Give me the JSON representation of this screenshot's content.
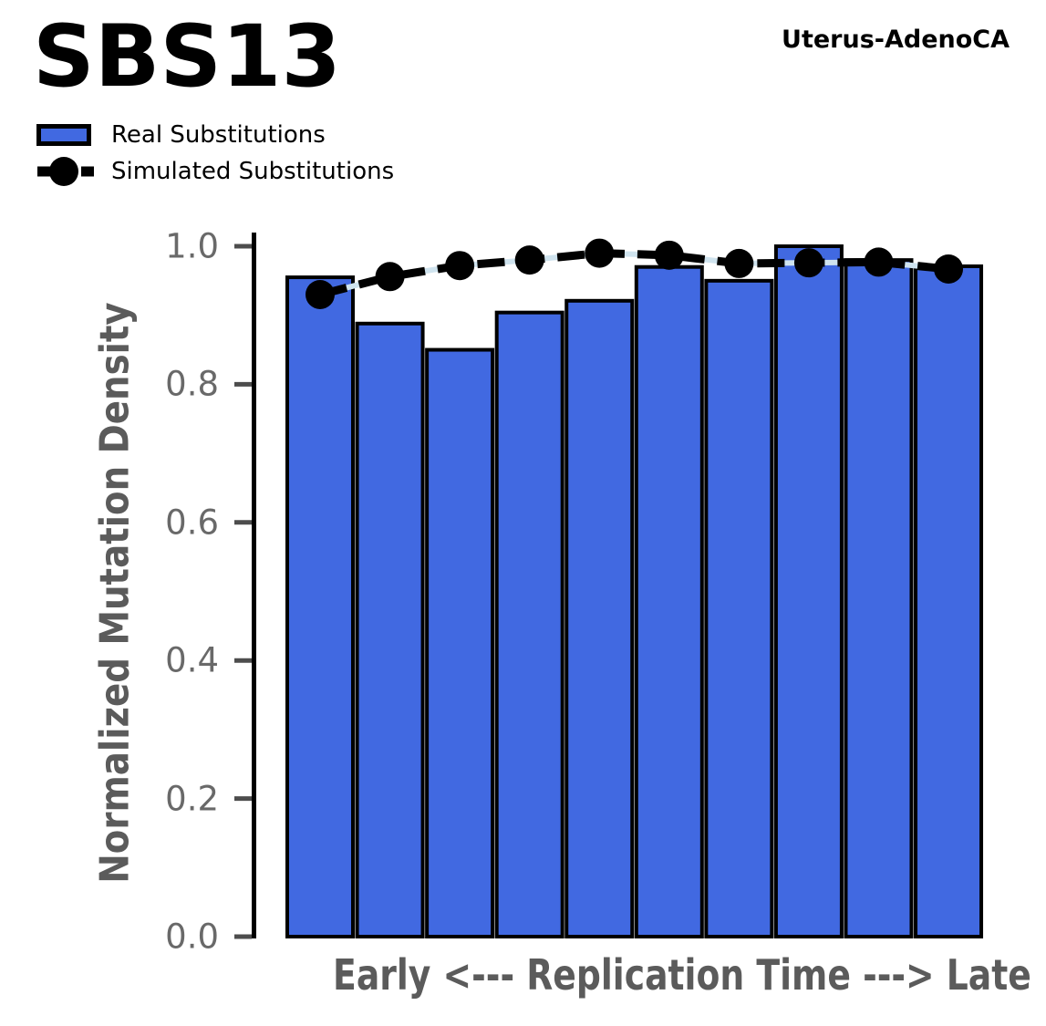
{
  "header": {
    "title": "SBS13",
    "cancer_type": "Uterus-AdenoCA"
  },
  "legend": {
    "items": [
      {
        "label": "Real Substitutions",
        "swatch": "blue-bar"
      },
      {
        "label": "Simulated Substitutions",
        "swatch": "black-dashed-line-with-circle-marker"
      }
    ]
  },
  "axes": {
    "ylabel": "Normalized Mutation Density",
    "xlabel": "Early <--- Replication Time ---> Late",
    "ytick_labels": [
      "0.0",
      "0.2",
      "0.4",
      "0.6",
      "0.8",
      "1.0"
    ]
  },
  "chart_data": {
    "type": "bar",
    "title": "SBS13",
    "subtitle": "Uterus-AdenoCA",
    "xlabel": "Early <--- Replication Time ---> Late",
    "ylabel": "Normalized Mutation Density",
    "ylim": [
      0.0,
      1.0
    ],
    "yticks": [
      0.0,
      0.2,
      0.4,
      0.6,
      0.8,
      1.0
    ],
    "x_bins": 10,
    "x_axis_tick_labels": "none",
    "grid": false,
    "legend_position": "upper-left-above-axes",
    "series": [
      {
        "name": "Real Substitutions",
        "type": "bar",
        "color": "#4169E1",
        "edge_color": "#000000",
        "values": [
          0.955,
          0.888,
          0.85,
          0.904,
          0.921,
          0.97,
          0.95,
          1.0,
          0.98,
          0.971
        ]
      },
      {
        "name": "Simulated Substitutions",
        "type": "line",
        "line_style": "dashed",
        "color": "#000000",
        "underlay_color": "#cfe3ee",
        "marker": "circle",
        "values": [
          0.93,
          0.956,
          0.972,
          0.98,
          0.99,
          0.987,
          0.975,
          0.976,
          0.977,
          0.967
        ]
      }
    ]
  },
  "colors": {
    "bar_fill": "#4169E1",
    "bar_edge": "#000000",
    "line_black": "#000000",
    "line_underlay": "#cfe3ee",
    "spine": "#000000",
    "tick_mark": "#4d4d4d",
    "tick_label": "#696969",
    "axis_label": "#5b5b5b",
    "background": "#ffffff"
  }
}
